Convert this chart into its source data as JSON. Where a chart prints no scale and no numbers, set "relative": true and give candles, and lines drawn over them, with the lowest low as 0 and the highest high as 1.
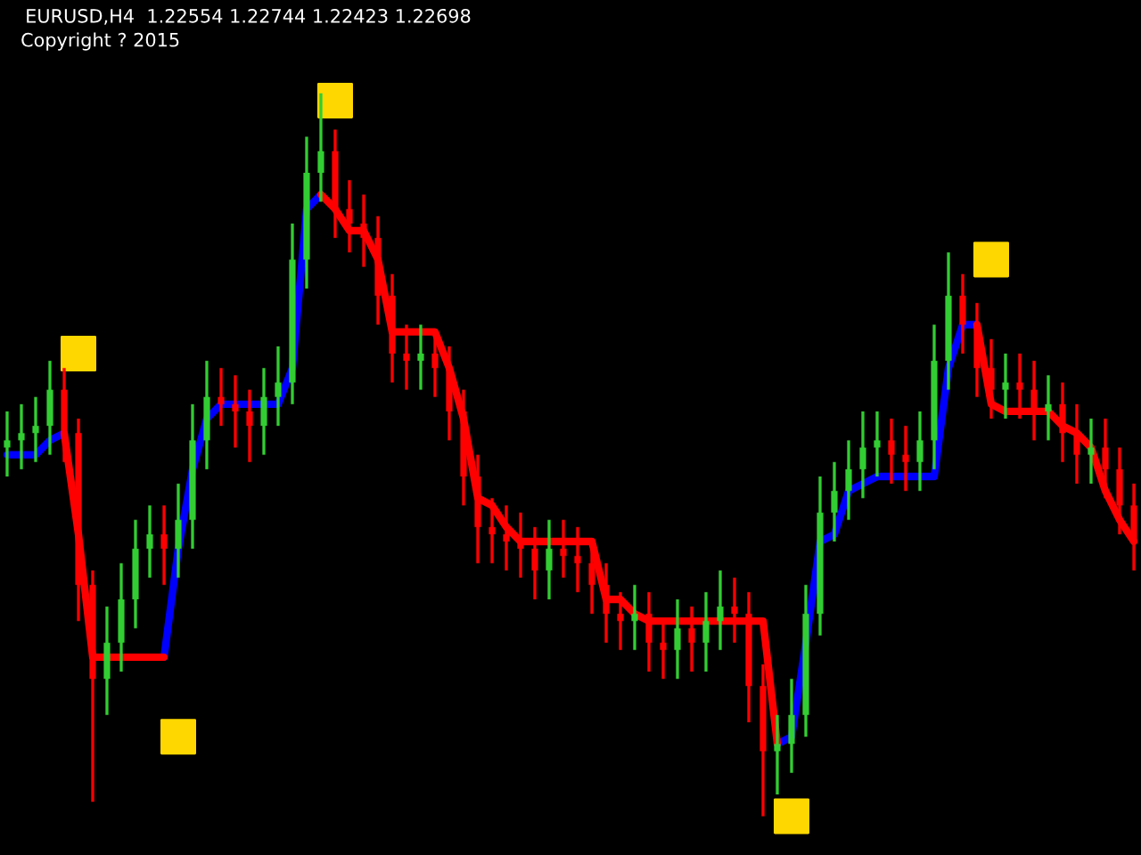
{
  "chart_data": {
    "type": "candlestick",
    "relative": true,
    "title": "EURUSD,H4  1.22554 1.22744 1.22423 1.22698",
    "annotations": [
      "Copyright ? 2015"
    ],
    "categories": [
      null,
      null,
      null,
      null,
      null,
      null,
      null,
      null,
      null,
      null,
      null,
      null,
      null,
      null,
      null,
      null,
      null,
      null,
      null,
      null,
      null,
      null,
      null,
      null,
      null,
      null,
      null,
      null,
      null,
      null,
      null,
      null,
      null,
      null,
      null,
      null,
      null,
      null,
      null,
      null,
      null,
      null,
      null,
      null,
      null,
      null,
      null,
      null,
      null,
      null,
      null,
      null,
      null,
      null,
      null,
      null,
      null,
      null,
      null,
      null,
      null,
      null,
      null,
      null,
      null,
      null,
      null,
      null,
      null,
      null,
      null,
      null,
      null,
      null,
      null,
      null,
      null,
      null,
      null,
      null
    ],
    "ohlc": [
      [
        0.51,
        0.56,
        0.47,
        0.52
      ],
      [
        0.52,
        0.57,
        0.48,
        0.53
      ],
      [
        0.53,
        0.58,
        0.49,
        0.54
      ],
      [
        0.54,
        0.63,
        0.5,
        0.59
      ],
      [
        0.59,
        0.62,
        0.49,
        0.53
      ],
      [
        0.53,
        0.55,
        0.27,
        0.32
      ],
      [
        0.32,
        0.34,
        0.02,
        0.19
      ],
      [
        0.19,
        0.29,
        0.14,
        0.24
      ],
      [
        0.24,
        0.35,
        0.2,
        0.3
      ],
      [
        0.3,
        0.41,
        0.26,
        0.37
      ],
      [
        0.37,
        0.43,
        0.33,
        0.39
      ],
      [
        0.39,
        0.43,
        0.32,
        0.37
      ],
      [
        0.37,
        0.46,
        0.33,
        0.41
      ],
      [
        0.41,
        0.57,
        0.37,
        0.52
      ],
      [
        0.52,
        0.63,
        0.48,
        0.58
      ],
      [
        0.58,
        0.62,
        0.54,
        0.57
      ],
      [
        0.57,
        0.61,
        0.51,
        0.56
      ],
      [
        0.56,
        0.59,
        0.49,
        0.54
      ],
      [
        0.54,
        0.62,
        0.5,
        0.58
      ],
      [
        0.58,
        0.65,
        0.54,
        0.6
      ],
      [
        0.6,
        0.82,
        0.57,
        0.77
      ],
      [
        0.77,
        0.94,
        0.73,
        0.89
      ],
      [
        0.89,
        1.0,
        0.85,
        0.92
      ],
      [
        0.92,
        0.95,
        0.8,
        0.84
      ],
      [
        0.84,
        0.88,
        0.78,
        0.82
      ],
      [
        0.82,
        0.86,
        0.76,
        0.8
      ],
      [
        0.8,
        0.83,
        0.68,
        0.72
      ],
      [
        0.72,
        0.75,
        0.6,
        0.64
      ],
      [
        0.64,
        0.68,
        0.59,
        0.63
      ],
      [
        0.63,
        0.68,
        0.59,
        0.64
      ],
      [
        0.64,
        0.67,
        0.58,
        0.62
      ],
      [
        0.62,
        0.65,
        0.52,
        0.56
      ],
      [
        0.56,
        0.59,
        0.43,
        0.47
      ],
      [
        0.47,
        0.5,
        0.35,
        0.4
      ],
      [
        0.4,
        0.44,
        0.35,
        0.39
      ],
      [
        0.39,
        0.43,
        0.34,
        0.38
      ],
      [
        0.38,
        0.42,
        0.33,
        0.37
      ],
      [
        0.37,
        0.4,
        0.3,
        0.34
      ],
      [
        0.34,
        0.41,
        0.3,
        0.37
      ],
      [
        0.37,
        0.41,
        0.33,
        0.36
      ],
      [
        0.36,
        0.4,
        0.31,
        0.35
      ],
      [
        0.35,
        0.38,
        0.28,
        0.32
      ],
      [
        0.32,
        0.35,
        0.24,
        0.28
      ],
      [
        0.28,
        0.31,
        0.23,
        0.27
      ],
      [
        0.27,
        0.32,
        0.23,
        0.28
      ],
      [
        0.28,
        0.31,
        0.2,
        0.24
      ],
      [
        0.24,
        0.27,
        0.19,
        0.23
      ],
      [
        0.23,
        0.3,
        0.19,
        0.26
      ],
      [
        0.26,
        0.29,
        0.2,
        0.24
      ],
      [
        0.24,
        0.31,
        0.2,
        0.27
      ],
      [
        0.27,
        0.34,
        0.23,
        0.29
      ],
      [
        0.29,
        0.33,
        0.24,
        0.28
      ],
      [
        0.28,
        0.31,
        0.13,
        0.18
      ],
      [
        0.18,
        0.21,
        0.0,
        0.09
      ],
      [
        0.09,
        0.14,
        0.03,
        0.1
      ],
      [
        0.1,
        0.19,
        0.06,
        0.14
      ],
      [
        0.14,
        0.32,
        0.11,
        0.28
      ],
      [
        0.28,
        0.47,
        0.25,
        0.42
      ],
      [
        0.42,
        0.49,
        0.38,
        0.45
      ],
      [
        0.45,
        0.52,
        0.41,
        0.48
      ],
      [
        0.48,
        0.56,
        0.44,
        0.51
      ],
      [
        0.51,
        0.56,
        0.47,
        0.52
      ],
      [
        0.52,
        0.55,
        0.46,
        0.5
      ],
      [
        0.5,
        0.54,
        0.45,
        0.49
      ],
      [
        0.49,
        0.56,
        0.45,
        0.52
      ],
      [
        0.52,
        0.68,
        0.48,
        0.63
      ],
      [
        0.63,
        0.78,
        0.59,
        0.72
      ],
      [
        0.72,
        0.75,
        0.64,
        0.68
      ],
      [
        0.68,
        0.71,
        0.58,
        0.62
      ],
      [
        0.62,
        0.66,
        0.55,
        0.59
      ],
      [
        0.59,
        0.64,
        0.55,
        0.6
      ],
      [
        0.6,
        0.64,
        0.55,
        0.59
      ],
      [
        0.59,
        0.63,
        0.52,
        0.56
      ],
      [
        0.56,
        0.61,
        0.52,
        0.57
      ],
      [
        0.57,
        0.6,
        0.49,
        0.53
      ],
      [
        0.53,
        0.57,
        0.46,
        0.5
      ],
      [
        0.5,
        0.55,
        0.46,
        0.51
      ],
      [
        0.51,
        0.55,
        0.44,
        0.48
      ],
      [
        0.48,
        0.51,
        0.39,
        0.43
      ],
      [
        0.43,
        0.46,
        0.34,
        0.38
      ]
    ],
    "colors": [
      "#32cd32",
      "#32cd32",
      "#32cd32",
      "#32cd32",
      "#ff0000",
      "#ff0000",
      "#ff0000",
      "#32cd32",
      "#32cd32",
      "#32cd32",
      "#32cd32",
      "#ff0000",
      "#32cd32",
      "#32cd32",
      "#32cd32",
      "#ff0000",
      "#ff0000",
      "#ff0000",
      "#32cd32",
      "#32cd32",
      "#32cd32",
      "#32cd32",
      "#32cd32",
      "#ff0000",
      "#ff0000",
      "#ff0000",
      "#ff0000",
      "#ff0000",
      "#ff0000",
      "#32cd32",
      "#ff0000",
      "#ff0000",
      "#ff0000",
      "#ff0000",
      "#ff0000",
      "#ff0000",
      "#ff0000",
      "#ff0000",
      "#32cd32",
      "#ff0000",
      "#ff0000",
      "#ff0000",
      "#ff0000",
      "#ff0000",
      "#32cd32",
      "#ff0000",
      "#ff0000",
      "#32cd32",
      "#ff0000",
      "#32cd32",
      "#32cd32",
      "#ff0000",
      "#ff0000",
      "#ff0000",
      "#32cd32",
      "#32cd32",
      "#32cd32",
      "#32cd32",
      "#32cd32",
      "#32cd32",
      "#32cd32",
      "#32cd32",
      "#ff0000",
      "#ff0000",
      "#32cd32",
      "#32cd32",
      "#32cd32",
      "#ff0000",
      "#ff0000",
      "#ff0000",
      "#32cd32",
      "#ff0000",
      "#ff0000",
      "#32cd32",
      "#ff0000",
      "#ff0000",
      "#32cd32",
      "#ff0000",
      "#ff0000",
      "#ff0000"
    ],
    "series": [
      {
        "type": "line",
        "color": "#0000ff",
        "values": [
          0.5,
          0.5,
          0.5,
          0.52,
          0.53,
          null,
          null,
          null,
          null,
          null,
          null,
          0.22,
          0.37,
          0.48,
          0.55,
          0.57,
          0.57,
          0.57,
          0.57,
          0.57,
          0.62,
          0.84,
          0.86,
          null,
          null,
          null,
          null,
          null,
          null,
          null,
          null,
          null,
          null,
          null,
          null,
          null,
          null,
          null,
          null,
          null,
          null,
          null,
          null,
          null,
          null,
          null,
          null,
          null,
          null,
          null,
          null,
          null,
          null,
          null,
          0.1,
          0.11,
          0.24,
          0.38,
          0.39,
          0.45,
          0.46,
          0.47,
          0.47,
          0.47,
          0.47,
          0.47,
          0.62,
          0.68,
          0.68,
          null,
          null,
          null,
          null,
          null,
          null,
          null,
          null,
          null,
          null,
          null
        ]
      },
      {
        "type": "line",
        "color": "#ff0000",
        "values": [
          null,
          null,
          null,
          null,
          0.53,
          0.39,
          0.22,
          0.22,
          0.22,
          0.22,
          0.22,
          0.22,
          null,
          null,
          null,
          null,
          null,
          null,
          null,
          null,
          null,
          null,
          0.86,
          0.84,
          0.81,
          0.81,
          0.77,
          0.67,
          0.67,
          0.67,
          0.67,
          0.62,
          0.55,
          0.44,
          0.43,
          0.4,
          0.38,
          0.38,
          0.38,
          0.38,
          0.38,
          0.38,
          0.3,
          0.3,
          0.28,
          0.27,
          0.27,
          0.27,
          0.27,
          0.27,
          0.27,
          0.27,
          0.27,
          0.27,
          0.1,
          null,
          null,
          null,
          null,
          null,
          null,
          null,
          null,
          null,
          null,
          null,
          null,
          null,
          0.68,
          0.57,
          0.56,
          0.56,
          0.56,
          0.56,
          0.54,
          0.53,
          0.51,
          0.45,
          0.41,
          0.38
        ]
      },
      {
        "type": "scatter",
        "color": "#ffd700",
        "marker": "square",
        "values": [
          null,
          null,
          null,
          null,
          null,
          0.64,
          null,
          null,
          null,
          null,
          null,
          null,
          0.11,
          null,
          null,
          null,
          null,
          null,
          null,
          null,
          null,
          null,
          null,
          0.99,
          null,
          null,
          null,
          null,
          null,
          null,
          null,
          null,
          null,
          null,
          null,
          null,
          null,
          null,
          null,
          null,
          null,
          null,
          null,
          null,
          null,
          null,
          null,
          null,
          null,
          null,
          null,
          null,
          null,
          null,
          null,
          0.0,
          null,
          null,
          null,
          null,
          null,
          null,
          null,
          null,
          null,
          null,
          null,
          null,
          null,
          0.77,
          null,
          null,
          null,
          null,
          null,
          null,
          null,
          null,
          null,
          null
        ]
      }
    ]
  }
}
